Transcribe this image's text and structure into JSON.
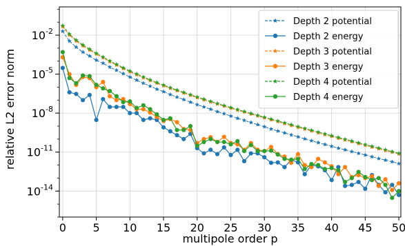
{
  "chart_data": {
    "type": "line",
    "title": "",
    "xlabel": "multipole order p",
    "ylabel": "relative L2 error norm",
    "xlim": [
      -0.5,
      50.3
    ],
    "ylim": [
      1e-16,
      1.5
    ],
    "yscale": "log",
    "grid": true,
    "legend": "top-right",
    "xticks": [
      0,
      5,
      10,
      15,
      20,
      25,
      30,
      35,
      40,
      45,
      50
    ],
    "xtick_labels": [
      "0",
      "5",
      "10",
      "15",
      "20",
      "25",
      "30",
      "35",
      "40",
      "45",
      "50"
    ],
    "yticks": [
      0.01,
      1e-05,
      1e-08,
      1e-11,
      1e-14
    ],
    "ytick_labels": [
      {
        "base": "10",
        "exp": "-2"
      },
      {
        "base": "10",
        "exp": "-5"
      },
      {
        "base": "10",
        "exp": "-8"
      },
      {
        "base": "10",
        "exp": "-11"
      },
      {
        "base": "10",
        "exp": "-14"
      }
    ],
    "x": [
      0,
      1,
      2,
      3,
      4,
      5,
      6,
      7,
      8,
      9,
      10,
      11,
      12,
      13,
      14,
      15,
      16,
      17,
      18,
      19,
      20,
      21,
      22,
      23,
      24,
      25,
      26,
      27,
      28,
      29,
      30,
      31,
      32,
      33,
      34,
      35,
      36,
      37,
      38,
      39,
      40,
      41,
      42,
      43,
      44,
      45,
      46,
      47,
      48,
      49,
      50
    ],
    "series": [
      {
        "name": "Depth 2 potential",
        "color": "#1f77b4",
        "style": "dashed",
        "marker": "star",
        "values": [
          0.02,
          0.0035,
          0.0012,
          0.0005,
          0.00025,
          0.00012,
          7e-05,
          3.5e-05,
          2e-05,
          1.1e-05,
          6e-06,
          3.5e-06,
          2e-06,
          1.2e-06,
          7e-07,
          4.5e-07,
          2.7e-07,
          1.7e-07,
          1.1e-07,
          7e-08,
          4.5e-08,
          3e-08,
          2e-08,
          1.3e-08,
          9e-09,
          6e-09,
          4e-09,
          2.8e-09,
          1.9e-09,
          1.3e-09,
          9e-10,
          6e-10,
          4.2e-10,
          3e-10,
          2.1e-10,
          1.5e-10,
          1.05e-10,
          7.5e-11,
          5.4e-11,
          3.9e-11,
          2.8e-11,
          2e-11,
          1.5e-11,
          1.1e-11,
          8e-12,
          6e-12,
          4.4e-12,
          3.2e-12,
          2.4e-12,
          1.8e-12,
          1.3e-12
        ]
      },
      {
        "name": "Depth 2 energy",
        "color": "#1f77b4",
        "style": "solid",
        "marker": "circle",
        "values": [
          3e-05,
          4e-07,
          3e-07,
          1e-07,
          2.5e-07,
          3e-09,
          1.2e-07,
          3e-08,
          3e-08,
          3e-08,
          1e-08,
          1e-08,
          3e-09,
          4e-09,
          3e-09,
          8e-10,
          4e-10,
          2e-10,
          1e-10,
          2.5e-10,
          2e-11,
          8e-12,
          1.5e-11,
          7e-12,
          2.3e-11,
          6e-12,
          1.5e-11,
          2e-12,
          8e-12,
          8e-12,
          4e-12,
          1.5e-12,
          1.6e-12,
          7e-13,
          2.5e-12,
          1.6e-12,
          2e-13,
          1e-12,
          8e-13,
          4e-13,
          7e-14,
          7e-13,
          2.5e-14,
          3e-14,
          5e-14,
          1.5e-14,
          1.7e-13,
          3e-14,
          8e-15,
          3e-14,
          5e-15
        ]
      },
      {
        "name": "Depth 3 potential",
        "color": "#ff7f0e",
        "style": "dashed",
        "marker": "star",
        "values": [
          0.045,
          0.01,
          0.0035,
          0.0015,
          0.0007,
          0.00035,
          0.00018,
          9e-05,
          5e-05,
          2.7e-05,
          1.5e-05,
          9e-06,
          5.2e-06,
          3.2e-06,
          2e-06,
          1.25e-06,
          8e-07,
          5.3e-07,
          3.5e-07,
          2.3e-07,
          1.55e-07,
          1.05e-07,
          7.2e-08,
          5e-08,
          3.4e-08,
          2.4e-08,
          1.7e-08,
          1.2e-08,
          8.5e-09,
          6e-09,
          4.3e-09,
          3e-09,
          2.2e-09,
          1.55e-09,
          1.1e-09,
          8e-10,
          5.8e-10,
          4.2e-10,
          3e-10,
          2.2e-10,
          1.6e-10,
          1.15e-10,
          8.5e-11,
          6.2e-11,
          4.5e-11,
          3.3e-11,
          2.4e-11,
          1.8e-11,
          1.3e-11,
          9.8e-12,
          7.2e-12
        ]
      },
      {
        "name": "Depth 3 energy",
        "color": "#ff7f0e",
        "style": "solid",
        "marker": "circle",
        "values": [
          0.0002,
          1e-05,
          1.5e-06,
          6e-06,
          5e-06,
          1e-06,
          2.5e-06,
          2e-07,
          1e-07,
          1.2e-07,
          5e-08,
          2e-08,
          2e-08,
          1.1e-08,
          5e-09,
          2.5e-09,
          3.5e-09,
          2e-09,
          6e-10,
          5e-10,
          5e-11,
          1e-10,
          1.4e-10,
          6e-11,
          1.5e-10,
          5e-11,
          4e-11,
          1.5e-11,
          5e-11,
          1.5e-11,
          1.2e-11,
          2.5e-11,
          7e-12,
          4.5e-12,
          1.5e-12,
          7e-12,
          1e-12,
          7e-13,
          3e-12,
          1.6e-12,
          8e-13,
          2e-13,
          7e-13,
          1.2e-13,
          1.7e-13,
          1e-13,
          1.4e-13,
          2.5e-14,
          8e-14,
          1.2e-14,
          4e-14
        ]
      },
      {
        "name": "Depth 4 potential",
        "color": "#2ca02c",
        "style": "dashed",
        "marker": "star",
        "values": [
          0.055,
          0.012,
          0.0042,
          0.0018,
          0.00085,
          0.0004,
          0.00021,
          0.000105,
          5.8e-05,
          3.1e-05,
          1.75e-05,
          1.05e-05,
          6.1e-06,
          3.7e-06,
          2.3e-06,
          1.45e-06,
          9.2e-07,
          6e-07,
          4e-07,
          2.65e-07,
          1.75e-07,
          1.2e-07,
          8.1e-08,
          5.6e-08,
          3.85e-08,
          2.7e-08,
          1.9e-08,
          1.35e-08,
          9.5e-09,
          6.8e-09,
          4.9e-09,
          3.5e-09,
          2.5e-09,
          1.8e-09,
          1.3e-09,
          9.2e-10,
          6.7e-10,
          4.8e-10,
          3.5e-10,
          2.55e-10,
          1.85e-10,
          1.35e-10,
          9.8e-11,
          7.2e-11,
          5.2e-11,
          3.8e-11,
          2.8e-11,
          2.05e-11,
          1.5e-11,
          1.1e-11,
          8e-12
        ]
      },
      {
        "name": "Depth 4 energy",
        "color": "#2ca02c",
        "style": "solid",
        "marker": "circle",
        "values": [
          0.0005,
          5e-06,
          2e-06,
          8e-06,
          7e-06,
          1.5e-06,
          8e-07,
          5e-07,
          2e-07,
          7e-08,
          8e-08,
          2.5e-08,
          4e-08,
          2e-08,
          8e-09,
          3e-09,
          4e-09,
          5e-10,
          5e-10,
          1e-09,
          3e-11,
          6e-11,
          1e-10,
          6e-11,
          6e-11,
          4e-11,
          7e-11,
          1.2e-11,
          3.5e-11,
          1.2e-11,
          1.2e-11,
          1.3e-11,
          6.5e-12,
          3e-12,
          2.6e-12,
          3e-12,
          5e-13,
          1.2e-12,
          1e-12,
          5e-13,
          6e-13,
          4e-13,
          5e-14,
          1e-13,
          3e-13,
          1.2e-13,
          7e-14,
          1e-13,
          3e-14,
          3e-15,
          1e-14
        ]
      }
    ]
  }
}
